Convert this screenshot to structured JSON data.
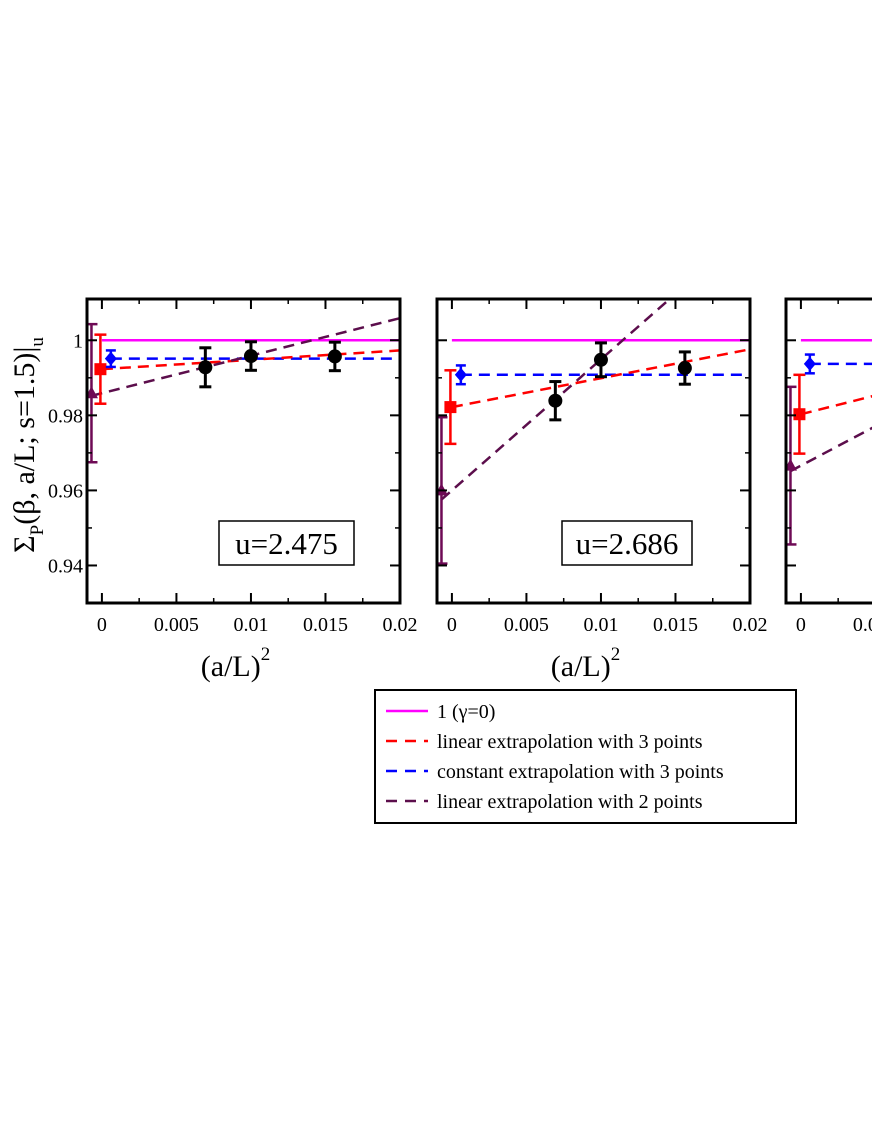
{
  "chart_data": {
    "type": "scatter",
    "ylabel_parts": {
      "sigma": "Σ",
      "sub_p": "P",
      "args": "(β, a/L; s=1.5)|",
      "sub_u": "u"
    },
    "xlabel_parts": {
      "base": "(a/L)",
      "sup": "2"
    },
    "xlim": [
      -0.001,
      0.02
    ],
    "ylim": [
      0.93,
      1.011
    ],
    "x_ticks": [
      "0",
      "0.005",
      "0.01",
      "0.015",
      "0.02"
    ],
    "y_ticks": [
      "0.94",
      "0.96",
      "0.98",
      "1"
    ],
    "grid": false,
    "legend_position": "below panels",
    "legend": [
      {
        "label": "1 (γ=0)",
        "color": "#ff00ff",
        "dash": "solid"
      },
      {
        "label": "linear extrapolation with 3 points",
        "color": "#ff0000",
        "dash": "dashed"
      },
      {
        "label": "constant extrapolation with 3 points",
        "color": "#0000ff",
        "dash": "dashed"
      },
      {
        "label": "linear extrapolation with 2 points",
        "color": "#5c0e4c",
        "dash": "dashed"
      }
    ],
    "colors": {
      "data": "#000000",
      "one": "#ff00ff",
      "lin3": "#ff0000",
      "const3": "#0000ff",
      "lin2": "#5c0e4c",
      "lin2_marker": "#6e0a55"
    },
    "panels": [
      {
        "label": "u=2.475",
        "data_points": [
          {
            "x": 0.00694,
            "y": 0.9928,
            "err": 0.0052
          },
          {
            "x": 0.01,
            "y": 0.9958,
            "err": 0.0038
          },
          {
            "x": 0.01563,
            "y": 0.9957,
            "err": 0.0038
          }
        ],
        "lin3": {
          "intercept": 0.9923,
          "slope": 0.25,
          "err": 0.0092
        },
        "const3": {
          "value": 0.9951,
          "err": 0.0022
        },
        "lin2": {
          "intercept": 0.9859,
          "slope": 1.0,
          "err": 0.0184
        }
      },
      {
        "label": "u=2.686",
        "data_points": [
          {
            "x": 0.00694,
            "y": 0.9839,
            "err": 0.0051
          },
          {
            "x": 0.01,
            "y": 0.9948,
            "err": 0.0045
          },
          {
            "x": 0.01563,
            "y": 0.9926,
            "err": 0.0043
          }
        ],
        "lin3": {
          "intercept": 0.9822,
          "slope": 0.77,
          "err": 0.0098
        },
        "const3": {
          "value": 0.9908,
          "err": 0.0025
        },
        "lin2": {
          "intercept": 0.96,
          "slope": 3.49,
          "err": 0.0195
        }
      },
      {
        "label": "",
        "data_points": [],
        "lin3": {
          "intercept": 0.9803,
          "slope": 1.0,
          "err": 0.0105
        },
        "const3": {
          "value": 0.9937,
          "err": 0.0025
        },
        "lin2": {
          "intercept": 0.9666,
          "slope": 2.1,
          "err": 0.021
        }
      }
    ]
  }
}
